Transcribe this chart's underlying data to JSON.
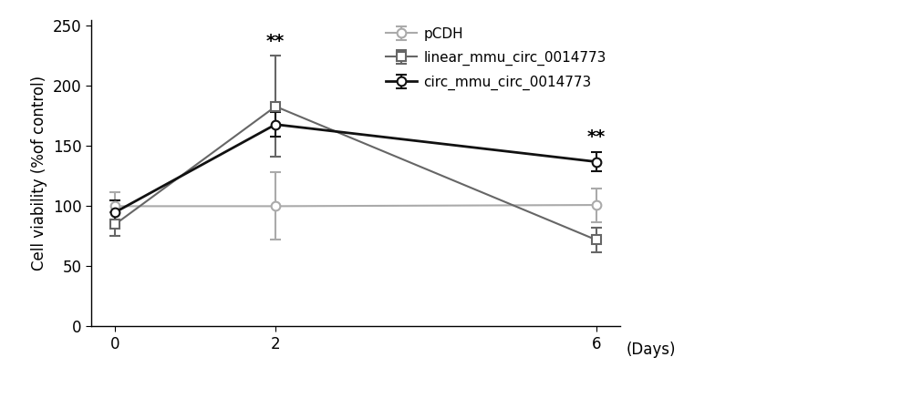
{
  "x": [
    0,
    2,
    6
  ],
  "series": [
    {
      "label": "pCDH",
      "y": [
        100,
        100,
        101
      ],
      "yerr": [
        12,
        28,
        14
      ],
      "color": "#aaaaaa",
      "marker": "o",
      "marker_size": 7,
      "line_style": "-",
      "line_width": 1.5
    },
    {
      "label": "linear_mmu_circ_0014773",
      "y": [
        85,
        183,
        72
      ],
      "yerr": [
        10,
        42,
        10
      ],
      "color": "#666666",
      "marker": "s",
      "marker_size": 7,
      "line_style": "-",
      "line_width": 1.5
    },
    {
      "label": "circ_mmu_circ_0014773",
      "y": [
        95,
        168,
        137
      ],
      "yerr": [
        10,
        10,
        8
      ],
      "color": "#111111",
      "marker": "o",
      "marker_size": 7,
      "line_style": "-",
      "line_width": 2.0
    }
  ],
  "ann1_x": 2,
  "ann1_y": 230,
  "ann2_x": 6,
  "ann2_y": 150,
  "ylabel": "Cell viability (%of control)",
  "xlabel": "(Days)",
  "ylim": [
    0,
    255
  ],
  "yticks": [
    0,
    50,
    100,
    150,
    200,
    250
  ],
  "xticks": [
    0,
    2,
    6
  ],
  "figsize": [
    10.0,
    4.37
  ],
  "dpi": 100,
  "background_color": "#ffffff",
  "legend_fontsize": 11,
  "axis_fontsize": 12,
  "tick_fontsize": 12
}
